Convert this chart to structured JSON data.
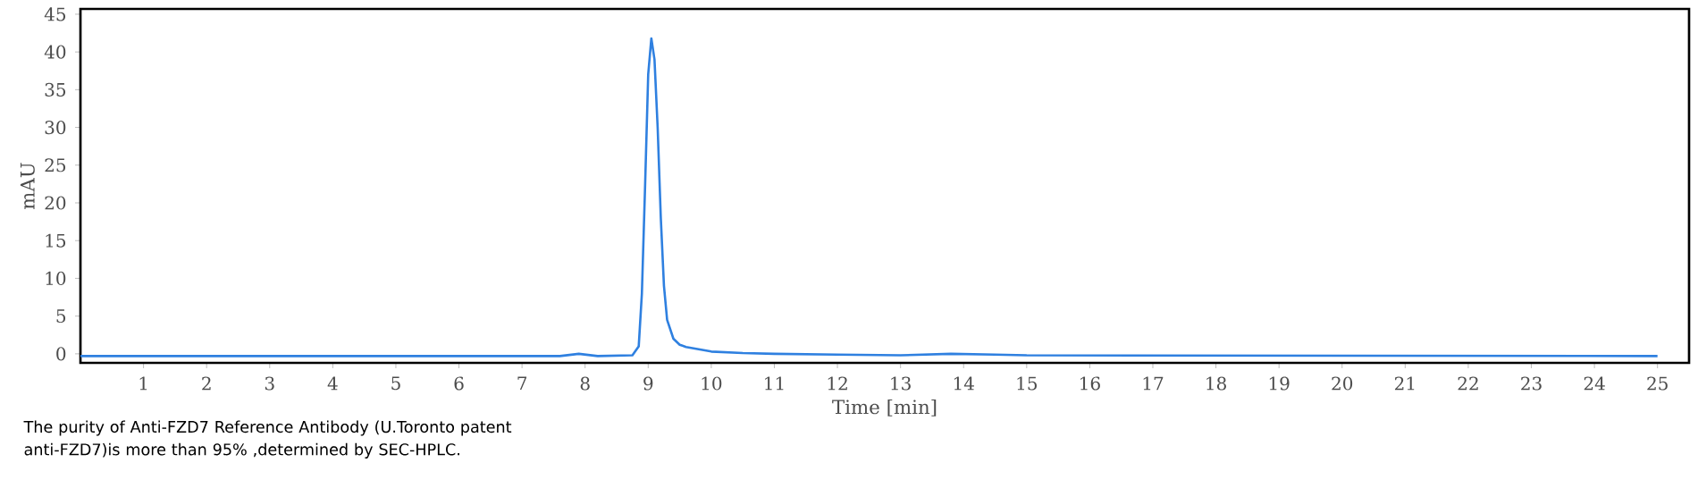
{
  "chart_data": {
    "type": "line",
    "xlabel": "Time [min]",
    "ylabel": "mAU",
    "xlim": [
      0,
      25.5
    ],
    "ylim": [
      -1.2,
      45.7
    ],
    "xticks": [
      1,
      2,
      3,
      4,
      5,
      6,
      7,
      8,
      9,
      10,
      11,
      12,
      13,
      14,
      15,
      16,
      17,
      18,
      19,
      20,
      21,
      22,
      23,
      24,
      25
    ],
    "yticks": [
      0,
      5,
      10,
      15,
      20,
      25,
      30,
      35,
      40,
      45
    ],
    "series": [
      {
        "color": "#2f80e0",
        "x": [
          0,
          7.6,
          7.9,
          8.2,
          8.75,
          8.85,
          8.9,
          8.95,
          9.0,
          9.05,
          9.1,
          9.15,
          9.2,
          9.25,
          9.3,
          9.4,
          9.5,
          9.6,
          9.8,
          10,
          10.5,
          11,
          12,
          13,
          13.8,
          14.5,
          15,
          25
        ],
        "values": [
          -0.3,
          -0.3,
          0.0,
          -0.3,
          -0.2,
          1,
          8,
          22,
          37,
          41.8,
          39,
          30,
          18,
          9,
          4.5,
          2,
          1.2,
          0.9,
          0.6,
          0.3,
          0.1,
          0,
          -0.1,
          -0.2,
          0,
          -0.1,
          -0.2,
          -0.3
        ]
      }
    ],
    "annotations": [
      "The purity of Anti-FZD7 Reference Antibody (U.Toronto patent anti-FZD7)is more than 95% ,determined by SEC-HPLC."
    ]
  }
}
